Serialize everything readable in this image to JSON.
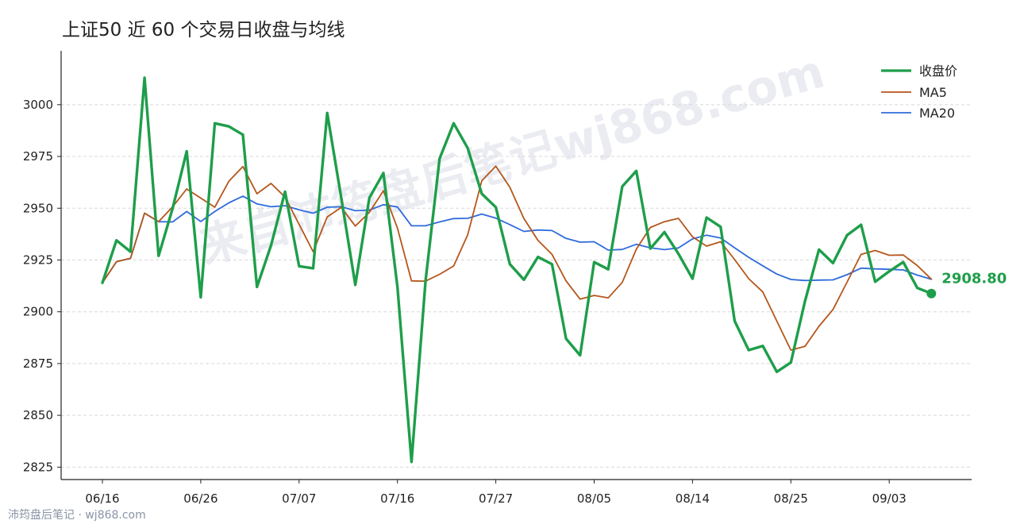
{
  "chart_data": {
    "type": "line",
    "title": "上证50 近 60 个交易日收盘与均线",
    "xlabel": "",
    "ylabel": "",
    "ylim": [
      2819,
      3026
    ],
    "yticks": [
      2825,
      2850,
      2875,
      2900,
      2925,
      2950,
      2975,
      3000
    ],
    "x_tick_labels": [
      "06/16",
      "06/26",
      "07/07",
      "07/16",
      "07/27",
      "08/05",
      "08/14",
      "08/25",
      "09/03"
    ],
    "x_tick_indices": [
      0,
      7,
      14,
      21,
      28,
      35,
      42,
      49,
      56
    ],
    "grid": "horizontal dashed",
    "legend_position": "top-right",
    "series": [
      {
        "name": "收盘价",
        "color": "#1e9e4a",
        "values": [
          2914,
          2934.5,
          2929,
          3013,
          2927,
          2950,
          2977.5,
          2907,
          2991,
          2989.5,
          2985.5,
          2912,
          2932,
          2958,
          2922,
          2921,
          2996,
          2955,
          2913,
          2955,
          2967,
          2912,
          2827.5,
          2915,
          2974,
          2991,
          2979,
          2957,
          2950.5,
          2923,
          2915.5,
          2926.5,
          2923,
          2887,
          2879,
          2924,
          2920.5,
          2960.5,
          2968,
          2930.5,
          2938.5,
          2928,
          2916,
          2945.5,
          2941,
          2895.5,
          2881.5,
          2883.5,
          2871,
          2875.5,
          2905,
          2930,
          2923.5,
          2937,
          2942,
          2914.5,
          2919.5,
          2924,
          2911.5,
          2908.8
        ]
      },
      {
        "name": "MA5",
        "color": "#b5561a",
        "values": [
          2914,
          2924.2,
          2925.8,
          2947.6,
          2943.5,
          2950.7,
          2959.3,
          2954.9,
          2950.5,
          2963,
          2970.1,
          2957,
          2962,
          2955.4,
          2942.2,
          2929,
          2945.8,
          2950.4,
          2941.4,
          2948,
          2958.4,
          2940.4,
          2914.9,
          2914.8,
          2918.1,
          2922.1,
          2937.2,
          2963.2,
          2970.3,
          2960.1,
          2945,
          2934.5,
          2927.7,
          2914.9,
          2906.1,
          2907.9,
          2906.7,
          2914.2,
          2930.2,
          2940.7,
          2943.5,
          2945.1,
          2936.2,
          2931.7,
          2933.8,
          2925.2,
          2916,
          2909.6,
          2895.5,
          2881.5,
          2883.3,
          2893,
          2901.1,
          2914.3,
          2927.7,
          2929.6,
          2927.3,
          2927.4,
          2922.3,
          2915.7
        ]
      },
      {
        "name": "MA20",
        "color": "#2f6bdc",
        "values": [
          2914,
          2924.2,
          2925.8,
          2947.6,
          2943.5,
          2943.4,
          2948.4,
          2943.6,
          2948.4,
          2952.6,
          2955.8,
          2952.1,
          2950.7,
          2951.2,
          2949.2,
          2947.6,
          2950.5,
          2950.7,
          2948.8,
          2949.1,
          2951.7,
          2950.6,
          2941.5,
          2941.5,
          2943.4,
          2945,
          2945.1,
          2947.2,
          2945.2,
          2942.1,
          2938.8,
          2939.5,
          2939.2,
          2935.4,
          2933.6,
          2933.8,
          2929.8,
          2930.1,
          2932.6,
          2930.9,
          2930,
          2930.8,
          2935.2,
          2937,
          2935.6,
          2930.9,
          2926.3,
          2922.2,
          2918.2,
          2915.6,
          2915.1,
          2915.3,
          2915.4,
          2917.9,
          2921.1,
          2920.7,
          2920.5,
          2920.2,
          2917.7,
          2915.7
        ]
      }
    ],
    "last_value_label": "2908.80"
  },
  "watermark": "来自沛筠盘后笔记wj868.com",
  "footer": "沛筠盘后笔记 · wj868.com"
}
